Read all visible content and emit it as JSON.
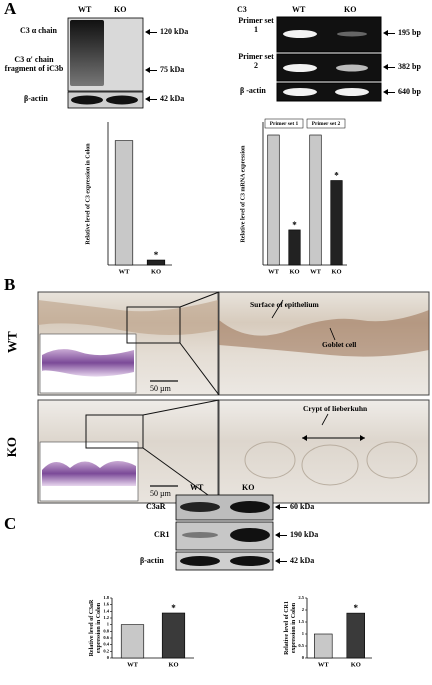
{
  "panel_labels": [
    "A",
    "B",
    "C"
  ],
  "blot_c3": {
    "lanes": [
      "WT",
      "KO"
    ],
    "rows": [
      "C3 α chain",
      "C3 α' chain fragment of iC3b",
      "β-actin"
    ],
    "sizes": [
      "120 kDa",
      "75 kDa",
      "42 kDa"
    ]
  },
  "pcr_c3": {
    "title": "C3",
    "lanes": [
      "WT",
      "KO"
    ],
    "rows": [
      "Primer set 1",
      "Primer set 2",
      "β -actin"
    ],
    "sizes": [
      "195 bp",
      "382 bp",
      "640 bp"
    ]
  },
  "histology": {
    "rows": [
      "WT",
      "KO"
    ],
    "scale_bars": [
      "50 µm",
      "50 µm"
    ],
    "annotations": [
      "Surface of epithelium",
      "Goblet cell",
      "Crypt of lieberkuhn"
    ]
  },
  "blot_receptors": {
    "lanes": [
      "WT",
      "KO"
    ],
    "rows": [
      "C3aR",
      "CR1",
      "β-actin"
    ],
    "sizes": [
      "60 kDa",
      "190 kDa",
      "42 kDa"
    ]
  },
  "chart_data": [
    {
      "type": "bar",
      "ylabel": "Relative level of C3 expression in Colon",
      "categories": [
        "WT",
        "KO"
      ],
      "values": [
        1,
        0.04
      ],
      "colors": [
        "#c8c8c8",
        "#222222"
      ],
      "significance": [
        null,
        "*"
      ],
      "ylim": [
        0,
        1.15
      ]
    },
    {
      "type": "bar",
      "ylabel": "Relative level of C3 mRNA expression",
      "groups": [
        "Primer set 1",
        "Primer set 2"
      ],
      "categories": [
        "WT",
        "KO",
        "WT",
        "KO"
      ],
      "values": [
        1,
        0.27,
        1,
        0.65
      ],
      "colors": [
        "#c8c8c8",
        "#222222",
        "#c8c8c8",
        "#222222"
      ],
      "significance": [
        null,
        "*",
        null,
        "*"
      ],
      "ylim": [
        0,
        1.1
      ]
    },
    {
      "type": "bar",
      "ylabel": "Relative level of C3aR expression in Colon",
      "categories": [
        "WT",
        "KO"
      ],
      "values": [
        1,
        1.35
      ],
      "colors": [
        "#c8c8c8",
        "#3a3a3a"
      ],
      "significance": [
        null,
        "*"
      ],
      "ylim": [
        0,
        1.8
      ],
      "yticks": [
        0,
        0.2,
        0.4,
        0.6,
        0.8,
        1,
        1.2,
        1.4,
        1.6,
        1.8
      ]
    },
    {
      "type": "bar",
      "ylabel": "Relative level of CR1 expression in Colon",
      "categories": [
        "WT",
        "KO"
      ],
      "values": [
        1,
        1.87
      ],
      "colors": [
        "#c8c8c8",
        "#3a3a3a"
      ],
      "significance": [
        null,
        "*"
      ],
      "ylim": [
        0,
        2.5
      ],
      "yticks": [
        0,
        0.5,
        1,
        1.5,
        2,
        2.5
      ]
    }
  ]
}
